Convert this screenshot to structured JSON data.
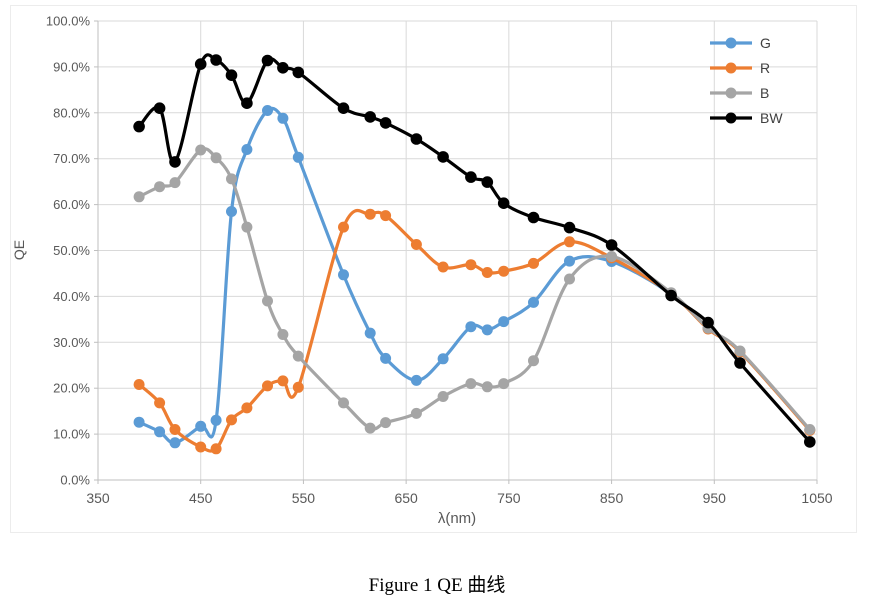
{
  "figure": {
    "caption": "Figure 1 QE 曲线"
  },
  "chart_data": {
    "type": "line",
    "title": "",
    "xlabel": "λ(nm)",
    "ylabel": "QE",
    "xlim": [
      350,
      1050
    ],
    "ylim": [
      0,
      100
    ],
    "x_ticks": [
      350,
      450,
      550,
      650,
      750,
      850,
      950,
      1050
    ],
    "y_ticks": [
      0,
      10,
      20,
      30,
      40,
      50,
      60,
      70,
      80,
      90,
      100
    ],
    "y_tick_labels": [
      "0.0%",
      "10.0%",
      "20.0%",
      "30.0%",
      "40.0%",
      "50.0%",
      "60.0%",
      "70.0%",
      "80.0%",
      "90.0%",
      "100.0%"
    ],
    "grid": true,
    "smoothed_lines": true,
    "marker": "circle",
    "legend_position": "inside-top-right",
    "colors": {
      "grid": "#D9D9D9",
      "axis": "#BFBFBF",
      "tick_text": "#595959",
      "legend_text": "#404040"
    },
    "x": [
      390,
      410,
      425,
      450,
      465,
      480,
      495,
      515,
      530,
      545,
      589,
      615,
      630,
      660,
      686,
      713,
      729,
      745,
      774,
      809,
      850,
      908,
      944,
      975,
      1043
    ],
    "series": [
      {
        "name": "G",
        "color": "#5B9BD5",
        "values": [
          12.6,
          10.5,
          8.1,
          11.7,
          13.0,
          58.5,
          72.0,
          80.5,
          78.8,
          70.3,
          44.7,
          32.0,
          26.5,
          21.7,
          26.4,
          33.4,
          32.7,
          34.5,
          38.7,
          47.7,
          47.6,
          40.5,
          33.0,
          28.0,
          10.9
        ]
      },
      {
        "name": "R",
        "color": "#ED7D31",
        "values": [
          20.8,
          16.8,
          11.0,
          7.2,
          6.8,
          13.1,
          15.7,
          20.5,
          21.6,
          20.2,
          55.1,
          57.9,
          57.6,
          51.3,
          46.4,
          46.9,
          45.2,
          45.5,
          47.2,
          51.9,
          48.4,
          40.6,
          32.9,
          27.9,
          10.8
        ]
      },
      {
        "name": "B",
        "color": "#A5A5A5",
        "values": [
          61.7,
          63.9,
          64.8,
          71.9,
          70.2,
          65.6,
          55.1,
          39.0,
          31.7,
          27.0,
          16.8,
          11.3,
          12.5,
          14.5,
          18.2,
          21.0,
          20.3,
          21.0,
          26.0,
          43.8,
          48.7,
          40.8,
          33.1,
          28.1,
          11.0
        ]
      },
      {
        "name": "BW",
        "color": "#000000",
        "values": [
          77.0,
          81.0,
          69.3,
          90.6,
          91.5,
          88.2,
          82.1,
          91.4,
          89.8,
          88.8,
          81.0,
          79.1,
          77.8,
          74.3,
          70.4,
          66.0,
          64.9,
          60.3,
          57.2,
          55.0,
          51.2,
          40.2,
          34.3,
          25.5,
          8.3
        ]
      }
    ]
  }
}
